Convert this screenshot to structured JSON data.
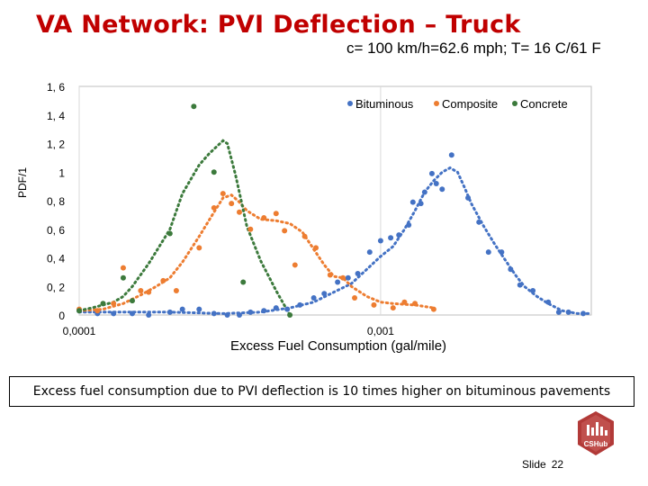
{
  "slide": {
    "title": "VA Network: PVI Deflection – Truck",
    "subtitle": "c= 100 km/h=62.6 mph; T= 16 C/61 F",
    "caption": "Excess fuel consumption due to PVI deflection is 10 times higher on bituminous pavements",
    "slide_label": "Slide",
    "slide_number": "22",
    "logo_text": "CSHub"
  },
  "colors": {
    "bituminous": "#4472c4",
    "composite": "#ed7d31",
    "concrete": "#3c7a3c",
    "title": "#c00000",
    "logo": "#c0504d"
  },
  "chart_data": {
    "type": "scatter",
    "title": "",
    "xlabel": "Excess Fuel Consumption (gal/mile)",
    "ylabel": "PDF/1",
    "xscale": "log",
    "xlim": [
      0.0001,
      0.005
    ],
    "ylim": [
      0,
      1.6
    ],
    "xticks": [
      0.0001,
      0.001
    ],
    "xtick_labels": [
      "0,0001",
      "0,001"
    ],
    "yticks": [
      0,
      0.2,
      0.4,
      0.6,
      0.8,
      1,
      1.2,
      1.4,
      1.6
    ],
    "ytick_labels": [
      "0",
      "0, 2",
      "0, 4",
      "0, 6",
      "0, 8",
      "1",
      "1, 2",
      "1, 4",
      "1, 6"
    ],
    "grid": "vertical",
    "legend": "top-right",
    "series": [
      {
        "name": "Bituminous",
        "color": "#4472c4",
        "points": [
          [
            0.0001,
            0.03
          ],
          [
            0.000115,
            0.01
          ],
          [
            0.00013,
            0.01
          ],
          [
            0.00015,
            0.01
          ],
          [
            0.00017,
            0.0
          ],
          [
            0.0002,
            0.02
          ],
          [
            0.00022,
            0.04
          ],
          [
            0.00025,
            0.04
          ],
          [
            0.00028,
            0.01
          ],
          [
            0.00031,
            0
          ],
          [
            0.00034,
            0
          ],
          [
            0.00037,
            0.02
          ],
          [
            0.00041,
            0.03
          ],
          [
            0.00045,
            0.05
          ],
          [
            0.00049,
            0.04
          ],
          [
            0.00054,
            0.07
          ],
          [
            0.0006,
            0.12
          ],
          [
            0.00065,
            0.15
          ],
          [
            0.00072,
            0.23
          ],
          [
            0.00078,
            0.26
          ],
          [
            0.00084,
            0.29
          ],
          [
            0.00092,
            0.44
          ],
          [
            0.001,
            0.52
          ],
          [
            0.00108,
            0.54
          ],
          [
            0.00115,
            0.56
          ],
          [
            0.00124,
            0.63
          ],
          [
            0.00128,
            0.79
          ],
          [
            0.00136,
            0.78
          ],
          [
            0.0014,
            0.86
          ],
          [
            0.00148,
            0.99
          ],
          [
            0.00153,
            0.92
          ],
          [
            0.0016,
            0.88
          ],
          [
            0.00172,
            1.12
          ],
          [
            0.00195,
            0.82
          ],
          [
            0.00212,
            0.65
          ],
          [
            0.00228,
            0.44
          ],
          [
            0.00252,
            0.44
          ],
          [
            0.0027,
            0.32
          ],
          [
            0.0029,
            0.21
          ],
          [
            0.0032,
            0.17
          ],
          [
            0.0036,
            0.09
          ],
          [
            0.0039,
            0.02
          ],
          [
            0.0042,
            0.02
          ],
          [
            0.0047,
            0.01
          ]
        ],
        "fit": [
          [
            0.0001,
            0.02
          ],
          [
            0.0002,
            0.02
          ],
          [
            0.0003,
            0.01
          ],
          [
            0.0004,
            0.02
          ],
          [
            0.0005,
            0.05
          ],
          [
            0.0006,
            0.09
          ],
          [
            0.0007,
            0.16
          ],
          [
            0.0008,
            0.22
          ],
          [
            0.0009,
            0.32
          ],
          [
            0.001,
            0.41
          ],
          [
            0.0011,
            0.48
          ],
          [
            0.0012,
            0.6
          ],
          [
            0.0013,
            0.73
          ],
          [
            0.0014,
            0.86
          ],
          [
            0.0015,
            0.94
          ],
          [
            0.0016,
            1.0
          ],
          [
            0.0017,
            1.03
          ],
          [
            0.0018,
            1.0
          ],
          [
            0.0019,
            0.89
          ],
          [
            0.002,
            0.78
          ],
          [
            0.0022,
            0.62
          ],
          [
            0.0024,
            0.49
          ],
          [
            0.0026,
            0.38
          ],
          [
            0.0028,
            0.28
          ],
          [
            0.003,
            0.2
          ],
          [
            0.0033,
            0.13
          ],
          [
            0.0036,
            0.08
          ],
          [
            0.004,
            0.03
          ],
          [
            0.0045,
            0.01
          ],
          [
            0.005,
            0.01
          ]
        ]
      },
      {
        "name": "Composite",
        "color": "#ed7d31",
        "points": [
          [
            0.0001,
            0.04
          ],
          [
            0.000115,
            0.03
          ],
          [
            0.00013,
            0.08
          ],
          [
            0.00014,
            0.33
          ],
          [
            0.00016,
            0.17
          ],
          [
            0.00017,
            0.16
          ],
          [
            0.00019,
            0.24
          ],
          [
            0.00021,
            0.17
          ],
          [
            0.00025,
            0.47
          ],
          [
            0.00028,
            0.75
          ],
          [
            0.0003,
            0.85
          ],
          [
            0.00032,
            0.78
          ],
          [
            0.00034,
            0.72
          ],
          [
            0.00037,
            0.6
          ],
          [
            0.00041,
            0.68
          ],
          [
            0.00045,
            0.71
          ],
          [
            0.00048,
            0.59
          ],
          [
            0.00052,
            0.35
          ],
          [
            0.00056,
            0.55
          ],
          [
            0.00061,
            0.47
          ],
          [
            0.00068,
            0.28
          ],
          [
            0.00075,
            0.26
          ],
          [
            0.00082,
            0.12
          ],
          [
            0.00095,
            0.07
          ],
          [
            0.0011,
            0.05
          ],
          [
            0.0012,
            0.09
          ],
          [
            0.0013,
            0.08
          ],
          [
            0.0015,
            0.04
          ]
        ],
        "fit": [
          [
            0.0001,
            0.03
          ],
          [
            0.00012,
            0.04
          ],
          [
            0.00014,
            0.08
          ],
          [
            0.00016,
            0.14
          ],
          [
            0.00018,
            0.2
          ],
          [
            0.0002,
            0.26
          ],
          [
            0.00022,
            0.37
          ],
          [
            0.00025,
            0.55
          ],
          [
            0.00028,
            0.72
          ],
          [
            0.0003,
            0.82
          ],
          [
            0.00032,
            0.84
          ],
          [
            0.00034,
            0.79
          ],
          [
            0.00036,
            0.73
          ],
          [
            0.0004,
            0.67
          ],
          [
            0.00045,
            0.66
          ],
          [
            0.0005,
            0.64
          ],
          [
            0.00055,
            0.58
          ],
          [
            0.0006,
            0.46
          ],
          [
            0.00065,
            0.35
          ],
          [
            0.0007,
            0.27
          ],
          [
            0.00075,
            0.26
          ],
          [
            0.0008,
            0.2
          ],
          [
            0.0009,
            0.13
          ],
          [
            0.001,
            0.09
          ],
          [
            0.0011,
            0.08
          ],
          [
            0.0013,
            0.07
          ],
          [
            0.0015,
            0.05
          ]
        ]
      },
      {
        "name": "Concrete",
        "color": "#3c7a3c",
        "points": [
          [
            0.0001,
            0.03
          ],
          [
            0.00012,
            0.08
          ],
          [
            0.00014,
            0.26
          ],
          [
            0.00015,
            0.1
          ],
          [
            0.0002,
            0.57
          ],
          [
            0.00024,
            1.46
          ],
          [
            0.00028,
            1.0
          ],
          [
            0.00035,
            0.23
          ],
          [
            0.0005,
            0.0
          ]
        ],
        "fit": [
          [
            0.0001,
            0.03
          ],
          [
            0.00011,
            0.05
          ],
          [
            0.00012,
            0.07
          ],
          [
            0.00013,
            0.09
          ],
          [
            0.00014,
            0.13
          ],
          [
            0.00015,
            0.2
          ],
          [
            0.00017,
            0.36
          ],
          [
            0.0002,
            0.6
          ],
          [
            0.00022,
            0.85
          ],
          [
            0.00025,
            1.05
          ],
          [
            0.00027,
            1.13
          ],
          [
            0.0003,
            1.22
          ],
          [
            0.00031,
            1.2
          ],
          [
            0.00033,
            0.98
          ],
          [
            0.00036,
            0.62
          ],
          [
            0.0004,
            0.38
          ],
          [
            0.00045,
            0.17
          ],
          [
            0.0005,
            0.0
          ]
        ]
      }
    ]
  }
}
